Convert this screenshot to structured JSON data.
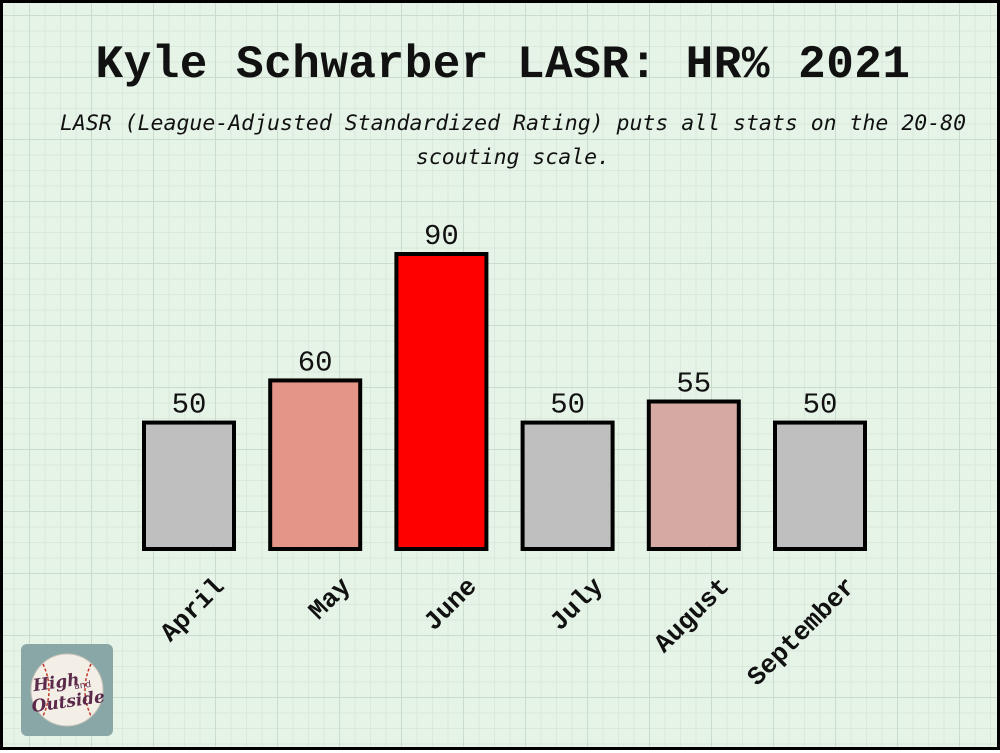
{
  "chart_data": {
    "type": "bar",
    "title": "Kyle Schwarber LASR: HR% 2021",
    "subtitle": "LASR (League-Adjusted Standardized Rating) puts all stats on the 20-80 scouting scale.",
    "categories": [
      "April",
      "May",
      "June",
      "July",
      "August",
      "September"
    ],
    "values": [
      50,
      60,
      90,
      50,
      55,
      50
    ],
    "colors": [
      "#bfbfbf",
      "#e39587",
      "#ff0000",
      "#bfbfbf",
      "#d4aaa2",
      "#bfbfbf"
    ],
    "ylim": [
      20,
      90
    ],
    "grid": false,
    "xlabel": "",
    "ylabel": ""
  },
  "logo": {
    "text_top": "High",
    "text_mid": "and",
    "text_bottom": "Outside"
  }
}
